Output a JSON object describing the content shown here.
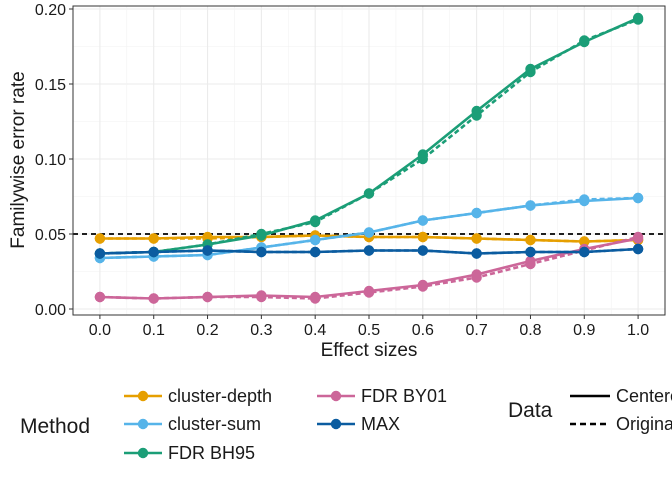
{
  "chart_data": {
    "type": "line",
    "xlabel": "Effect sizes",
    "ylabel": "Familywise error rate",
    "x": [
      0.0,
      0.1,
      0.2,
      0.3,
      0.4,
      0.5,
      0.6,
      0.7,
      0.8,
      0.9,
      1.0
    ],
    "x_tick_labels": [
      "0.0",
      "0.1",
      "0.2",
      "0.3",
      "0.4",
      "0.5",
      "0.6",
      "0.7",
      "0.8",
      "0.9",
      "1.0"
    ],
    "y_ticks": [
      0.0,
      0.05,
      0.1,
      0.15,
      0.2
    ],
    "y_tick_labels": [
      "0.00",
      "0.05",
      "0.10",
      "0.15",
      "0.20"
    ],
    "xlim": [
      -0.05,
      1.05
    ],
    "ylim": [
      -0.004,
      0.202
    ],
    "grid": true,
    "reference_line": {
      "y": 0.05,
      "style": "dashed",
      "color": "#000000"
    },
    "series": [
      {
        "name": "cluster-depth",
        "color": "#E69F00",
        "centered": [
          0.047,
          0.047,
          0.048,
          0.048,
          0.049,
          0.048,
          0.048,
          0.047,
          0.046,
          0.045,
          0.046
        ],
        "original": [
          0.047,
          0.047,
          0.047,
          0.048,
          0.049,
          0.048,
          0.048,
          0.047,
          0.046,
          0.045,
          0.046
        ]
      },
      {
        "name": "cluster-sum",
        "color": "#56B4E9",
        "centered": [
          0.034,
          0.035,
          0.036,
          0.041,
          0.046,
          0.051,
          0.059,
          0.064,
          0.069,
          0.072,
          0.074
        ],
        "original": [
          0.034,
          0.035,
          0.036,
          0.041,
          0.046,
          0.051,
          0.059,
          0.064,
          0.069,
          0.073,
          0.074
        ]
      },
      {
        "name": "FDR BH95",
        "color": "#1B9E77",
        "centered": [
          0.037,
          0.038,
          0.043,
          0.049,
          0.059,
          0.077,
          0.103,
          0.132,
          0.16,
          0.178,
          0.194
        ],
        "original": [
          0.037,
          0.038,
          0.043,
          0.05,
          0.058,
          0.077,
          0.1,
          0.129,
          0.158,
          0.179,
          0.193
        ]
      },
      {
        "name": "FDR BY01",
        "color": "#CC6699",
        "centered": [
          0.008,
          0.007,
          0.008,
          0.009,
          0.008,
          0.012,
          0.016,
          0.023,
          0.032,
          0.04,
          0.047
        ],
        "original": [
          0.008,
          0.007,
          0.008,
          0.008,
          0.007,
          0.011,
          0.015,
          0.021,
          0.03,
          0.039,
          0.048
        ]
      },
      {
        "name": "MAX",
        "color": "#0B5CA0",
        "centered": [
          0.037,
          0.038,
          0.039,
          0.038,
          0.038,
          0.039,
          0.039,
          0.037,
          0.038,
          0.038,
          0.04
        ],
        "original": [
          0.037,
          0.038,
          0.039,
          0.038,
          0.038,
          0.039,
          0.039,
          0.037,
          0.038,
          0.038,
          0.04
        ]
      }
    ],
    "legends": {
      "method": {
        "title": "Method",
        "entries": [
          "cluster-depth",
          "cluster-sum",
          "FDR BH95",
          "FDR BY01",
          "MAX"
        ]
      },
      "data": {
        "title": "Data",
        "entries": [
          {
            "label": "Centered",
            "linetype": "solid"
          },
          {
            "label": "Original",
            "linetype": "dashed"
          }
        ]
      }
    },
    "legend_position": "bottom"
  }
}
